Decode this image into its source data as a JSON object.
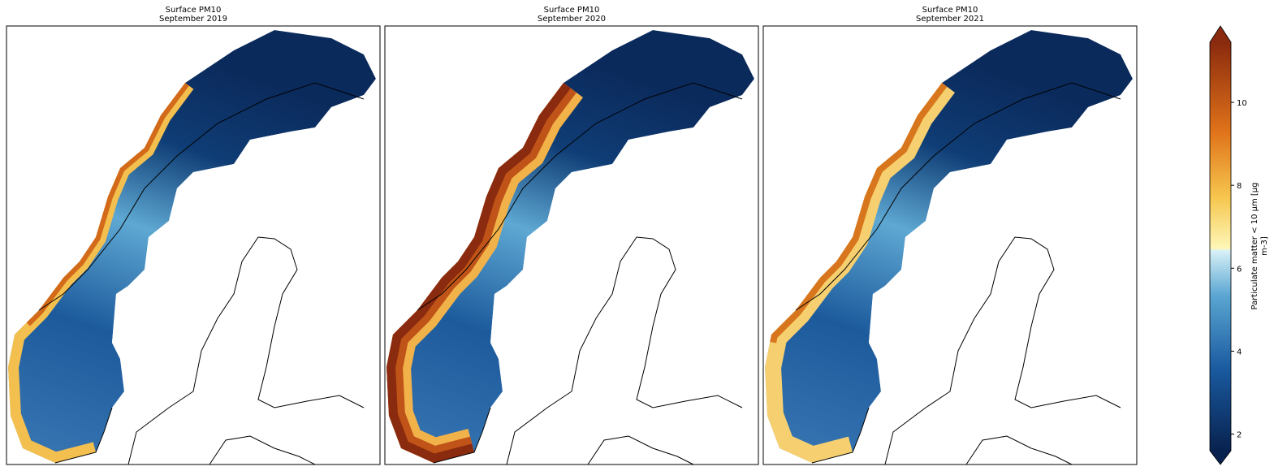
{
  "figure": {
    "panels": [
      {
        "title": "Surface PM10",
        "subtitle": "September 2019"
      },
      {
        "title": "Surface PM10",
        "subtitle": "September 2020"
      },
      {
        "title": "Surface PM10",
        "subtitle": "September 2021"
      }
    ],
    "colorbar": {
      "label": [
        "Particulate matter < 10 µm [µg",
        "m-3]"
      ],
      "lim": [
        1.6,
        11.45
      ],
      "ticks": [
        2,
        4,
        6,
        8,
        10
      ]
    }
  }
}
